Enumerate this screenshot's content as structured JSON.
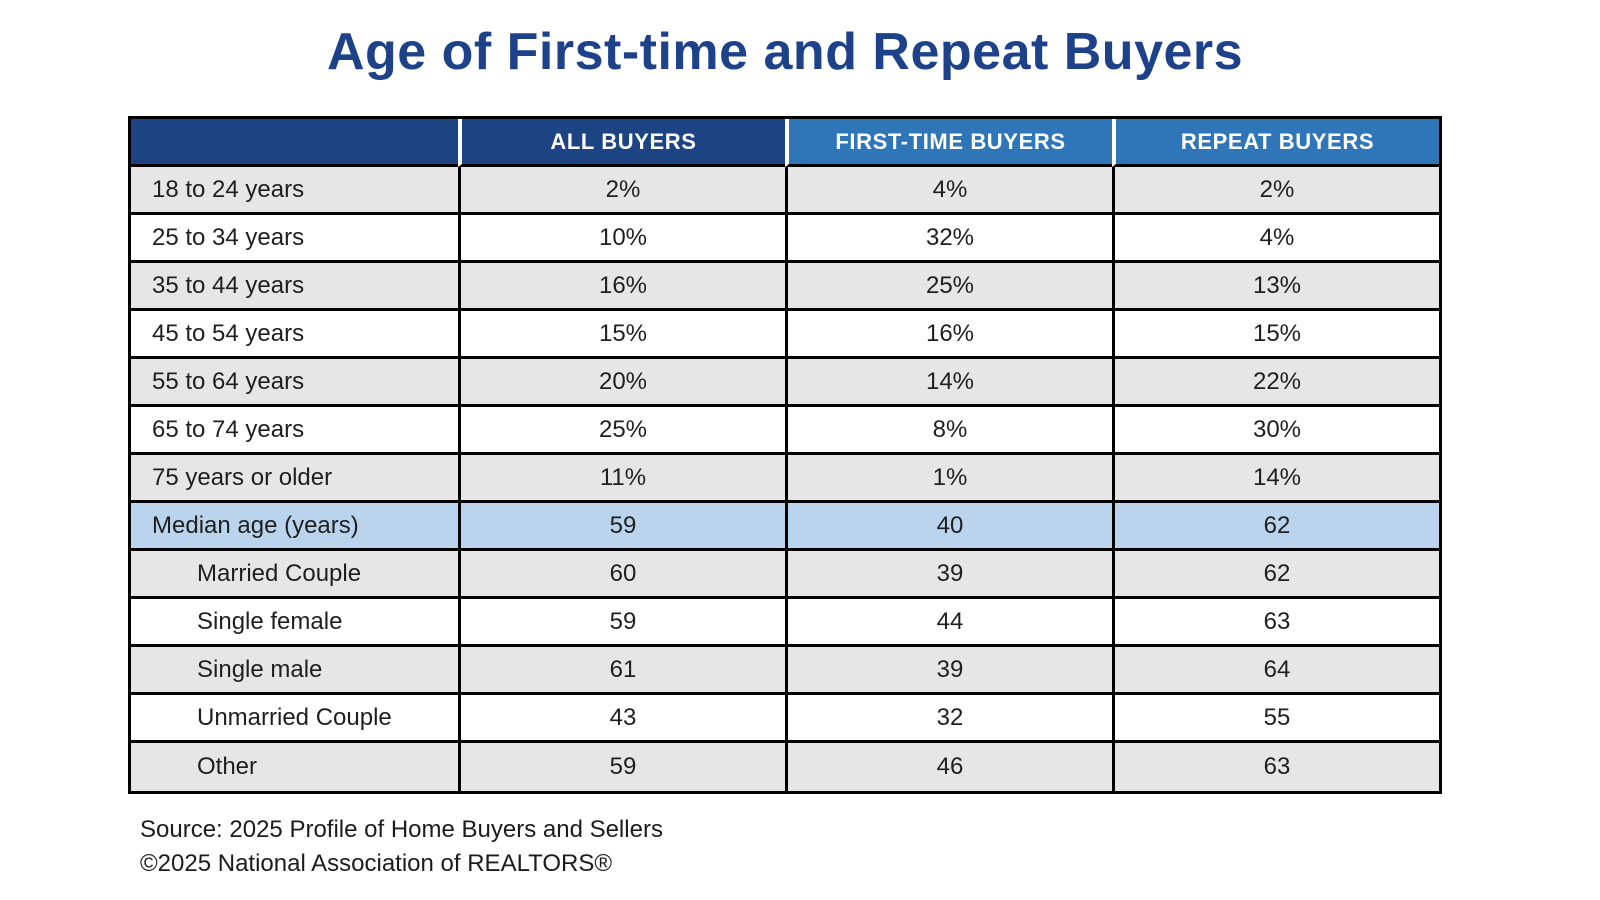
{
  "title": "Age of First-time and Repeat Buyers",
  "colors": {
    "title": "#1d4289",
    "header_dark": "#1c4382",
    "header_light": "#2e76b8",
    "header_text": "#ffffff",
    "row_gray": "#e6e6e6",
    "row_white": "#ffffff",
    "row_highlight": "#b9d4ec",
    "body_text": "#1f1f1f",
    "border": "#000000"
  },
  "table": {
    "columns": [
      {
        "label": "",
        "style": "dark"
      },
      {
        "label": "ALL BUYERS",
        "style": "dark"
      },
      {
        "label": "FIRST-TIME BUYERS",
        "style": "light"
      },
      {
        "label": "REPEAT BUYERS",
        "style": "light"
      }
    ],
    "rows": [
      {
        "label": "18 to 24 years",
        "values": [
          "2%",
          "4%",
          "2%"
        ],
        "shade": "gray",
        "indent": false
      },
      {
        "label": "25 to 34 years",
        "values": [
          "10%",
          "32%",
          "4%"
        ],
        "shade": "white",
        "indent": false
      },
      {
        "label": "35 to 44 years",
        "values": [
          "16%",
          "25%",
          "13%"
        ],
        "shade": "gray",
        "indent": false
      },
      {
        "label": "45 to 54 years",
        "values": [
          "15%",
          "16%",
          "15%"
        ],
        "shade": "white",
        "indent": false
      },
      {
        "label": "55 to 64 years",
        "values": [
          "20%",
          "14%",
          "22%"
        ],
        "shade": "gray",
        "indent": false
      },
      {
        "label": "65 to 74 years",
        "values": [
          "25%",
          "8%",
          "30%"
        ],
        "shade": "white",
        "indent": false
      },
      {
        "label": "75 years or older",
        "values": [
          "11%",
          "1%",
          "14%"
        ],
        "shade": "gray",
        "indent": false
      },
      {
        "label": "Median age (years)",
        "values": [
          "59",
          "40",
          "62"
        ],
        "shade": "highlight",
        "indent": false
      },
      {
        "label": "Married Couple",
        "values": [
          "60",
          "39",
          "62"
        ],
        "shade": "gray",
        "indent": true
      },
      {
        "label": "Single female",
        "values": [
          "59",
          "44",
          "63"
        ],
        "shade": "white",
        "indent": true
      },
      {
        "label": "Single male",
        "values": [
          "61",
          "39",
          "64"
        ],
        "shade": "gray",
        "indent": true
      },
      {
        "label": "Unmarried Couple",
        "values": [
          "43",
          "32",
          "55"
        ],
        "shade": "white",
        "indent": true
      },
      {
        "label": "Other",
        "values": [
          "59",
          "46",
          "63"
        ],
        "shade": "gray",
        "indent": true
      }
    ]
  },
  "source": {
    "line1": "Source: 2025 Profile of Home Buyers and Sellers",
    "line2": "©2025 National Association of REALTORS®"
  },
  "chart_data": {
    "type": "table",
    "title": "Age of First-time and Repeat Buyers",
    "columns": [
      "",
      "ALL BUYERS",
      "FIRST-TIME BUYERS",
      "REPEAT BUYERS"
    ],
    "rows": [
      [
        "18 to 24 years",
        "2%",
        "4%",
        "2%"
      ],
      [
        "25 to 34 years",
        "10%",
        "32%",
        "4%"
      ],
      [
        "35 to 44 years",
        "16%",
        "25%",
        "13%"
      ],
      [
        "45 to 54 years",
        "15%",
        "16%",
        "15%"
      ],
      [
        "55 to 64 years",
        "20%",
        "14%",
        "22%"
      ],
      [
        "65 to 74 years",
        "25%",
        "8%",
        "30%"
      ],
      [
        "75 years or older",
        "11%",
        "1%",
        "14%"
      ],
      [
        "Median age (years)",
        "59",
        "40",
        "62"
      ],
      [
        "Married Couple",
        "60",
        "39",
        "62"
      ],
      [
        "Single female",
        "59",
        "44",
        "63"
      ],
      [
        "Single male",
        "61",
        "39",
        "64"
      ],
      [
        "Unmarried Couple",
        "43",
        "32",
        "55"
      ],
      [
        "Other",
        "59",
        "46",
        "63"
      ]
    ],
    "notes": [
      "Source: 2025 Profile of Home Buyers and Sellers",
      "©2025 National Association of REALTORS®"
    ]
  }
}
